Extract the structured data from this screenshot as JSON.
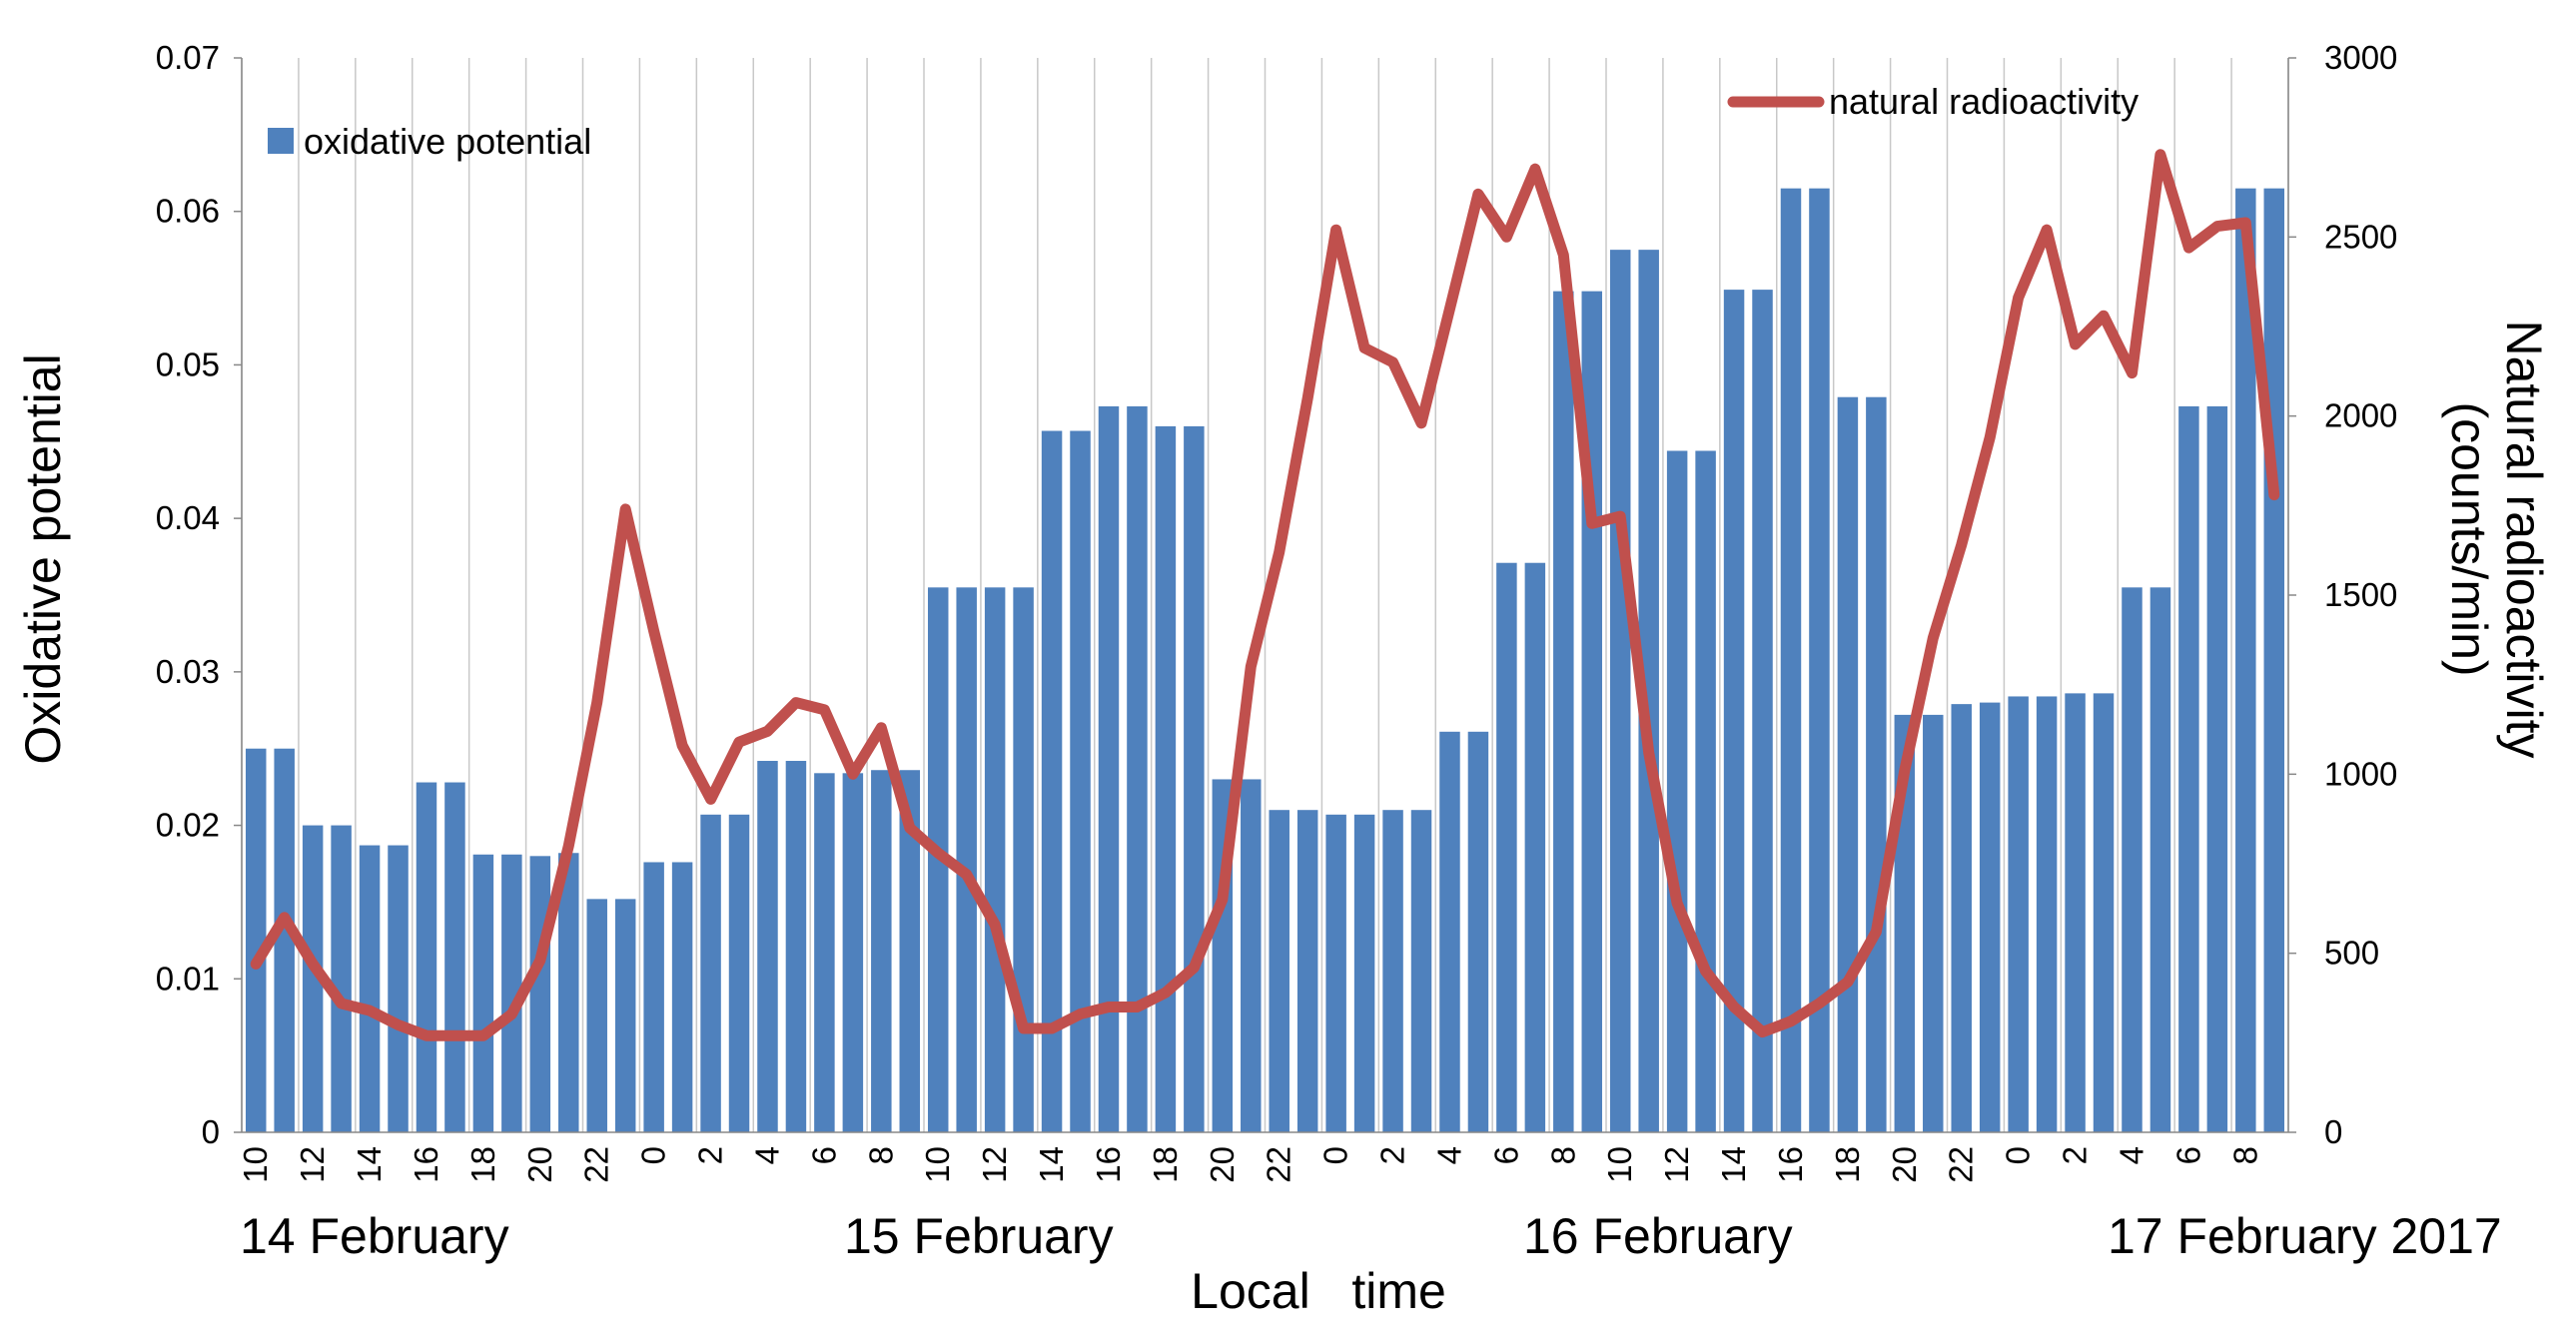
{
  "chart_data": {
    "type": "combo",
    "x_label": "Local   time",
    "y_label": "Oxidative potential",
    "y2_label": [
      "Natural radioactivity",
      "(counts/min)"
    ],
    "date_labels": [
      "14 February",
      "15 February",
      "16 February",
      "17 February 2017"
    ],
    "categories": [
      "10",
      null,
      "12",
      null,
      "14",
      null,
      "16",
      null,
      "18",
      null,
      "20",
      null,
      "22",
      null,
      "0",
      null,
      "2",
      null,
      "4",
      null,
      "6",
      null,
      "8",
      null,
      "10",
      null,
      "12",
      null,
      "14",
      null,
      "16",
      null,
      "18",
      null,
      "20",
      null,
      "22",
      null,
      "0",
      null,
      "2",
      null,
      "4",
      null,
      "6",
      null,
      "8",
      null,
      "10",
      null,
      "12",
      null,
      "14",
      null,
      "16",
      null,
      "18",
      null,
      "20",
      null,
      "22",
      null,
      "0",
      null,
      "2",
      null,
      "4",
      null,
      "6",
      null,
      "8",
      null
    ],
    "ylim": [
      0,
      0.07
    ],
    "yticks": [
      0,
      0.01,
      0.02,
      0.03,
      0.04,
      0.05,
      0.06,
      0.07
    ],
    "y2lim": [
      0,
      3000
    ],
    "y2ticks": [
      0,
      500,
      1000,
      1500,
      2000,
      2500,
      3000
    ],
    "grid": "x",
    "series": [
      {
        "name": "oxidative potential",
        "type": "bar",
        "color": "#4f81bd",
        "legend": "upper left",
        "values": [
          0.025,
          0.025,
          0.02,
          0.02,
          0.0187,
          0.0187,
          0.0228,
          0.0228,
          0.0181,
          0.0181,
          0.018,
          0.0182,
          0.0152,
          0.0152,
          0.0176,
          0.0176,
          0.0207,
          0.0207,
          0.0242,
          0.0242,
          0.0234,
          0.0234,
          0.0236,
          0.0236,
          0.0355,
          0.0355,
          0.0355,
          0.0355,
          0.0457,
          0.0457,
          0.0473,
          0.0473,
          0.046,
          0.046,
          0.023,
          0.023,
          0.021,
          0.021,
          0.0207,
          0.0207,
          0.021,
          0.021,
          0.0261,
          0.0261,
          0.0371,
          0.0371,
          0.0548,
          0.0548,
          0.0575,
          0.0575,
          0.0444,
          0.0444,
          0.0549,
          0.0549,
          0.0615,
          0.0615,
          0.0479,
          0.0479,
          0.0272,
          0.0272,
          0.0279,
          0.028,
          0.0284,
          0.0284,
          0.0286,
          0.0286,
          0.0355,
          0.0355,
          0.0473,
          0.0473,
          0.0615,
          0.0615
        ]
      },
      {
        "name": "natural radioactivity",
        "type": "line",
        "axis": "y2",
        "color": "#c0504d",
        "legend": "upper right",
        "values": [
          470,
          600,
          470,
          360,
          340,
          300,
          270,
          270,
          270,
          330,
          480,
          800,
          1200,
          1740,
          1400,
          1080,
          930,
          1090,
          1120,
          1200,
          1180,
          1000,
          1130,
          850,
          780,
          720,
          580,
          290,
          290,
          330,
          350,
          350,
          390,
          460,
          650,
          1300,
          1620,
          2050,
          2520,
          2190,
          2150,
          1980,
          2300,
          2620,
          2500,
          2690,
          2450,
          1700,
          1720,
          1060,
          640,
          450,
          350,
          280,
          310,
          360,
          420,
          560,
          1010,
          1380,
          1640,
          1940,
          2330,
          2520,
          2200,
          2280,
          2120,
          2730,
          2470,
          2530,
          2540,
          1780
        ]
      }
    ]
  }
}
